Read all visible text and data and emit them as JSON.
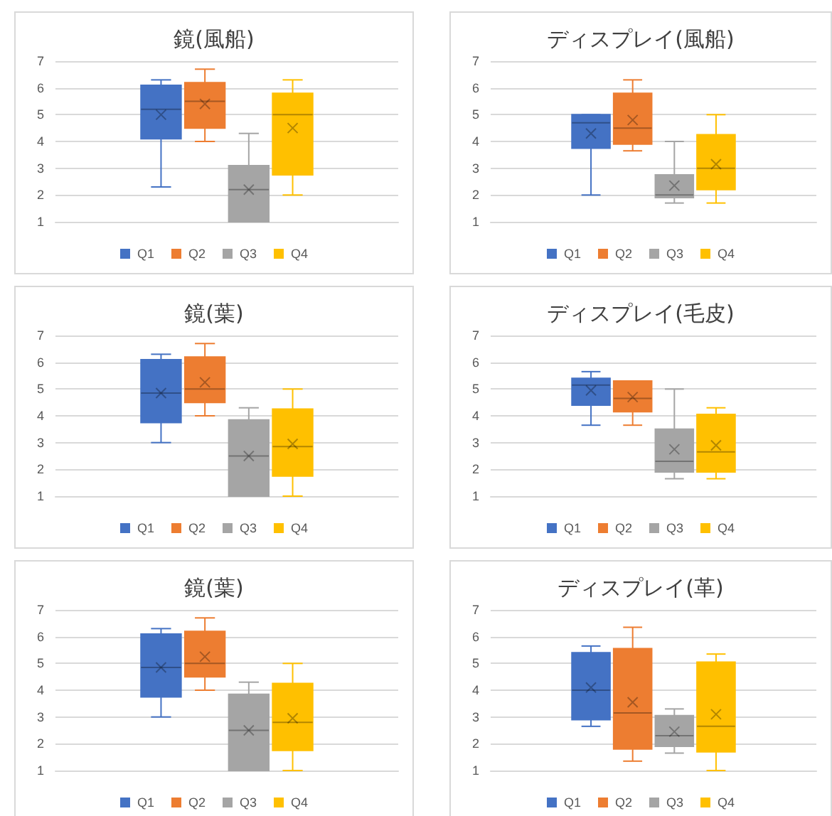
{
  "chart_data": [
    {
      "type": "box",
      "title": "鏡(風船)",
      "categories": [
        null
      ],
      "ylim": [
        1,
        7
      ],
      "yticks": [
        1,
        2,
        3,
        4,
        5,
        6,
        7
      ],
      "grid": "y",
      "legend": "bottom",
      "series": [
        {
          "name": "Q1",
          "color": "#4472c4",
          "boxes": [
            {
              "low": 2.3,
              "q1": 4.1,
              "median": 5.2,
              "q3": 6.1,
              "high": 6.3,
              "mean": 5.0
            }
          ]
        },
        {
          "name": "Q2",
          "color": "#ed7d31",
          "boxes": [
            {
              "low": 4.0,
              "q1": 4.5,
              "median": 5.5,
              "q3": 6.2,
              "high": 6.7,
              "mean": 5.4
            }
          ]
        },
        {
          "name": "Q3",
          "color": "#a5a5a5",
          "boxes": [
            {
              "low": 1.0,
              "q1": 1.0,
              "median": 2.2,
              "q3": 3.1,
              "high": 4.3,
              "mean": 2.2
            }
          ]
        },
        {
          "name": "Q4",
          "color": "#ffc000",
          "boxes": [
            {
              "low": 2.0,
              "q1": 2.75,
              "median": 5.0,
              "q3": 5.8,
              "high": 6.3,
              "mean": 4.5
            }
          ]
        }
      ]
    },
    {
      "type": "box",
      "title": "ディスプレイ(風船)",
      "categories": [
        null
      ],
      "ylim": [
        1,
        7
      ],
      "yticks": [
        1,
        2,
        3,
        4,
        5,
        6,
        7
      ],
      "grid": "y",
      "legend": "bottom",
      "series": [
        {
          "name": "Q1",
          "color": "#4472c4",
          "boxes": [
            {
              "low": 2.0,
              "q1": 3.75,
              "median": 4.7,
              "q3": 5.0,
              "high": 5.0,
              "mean": 4.3
            }
          ]
        },
        {
          "name": "Q2",
          "color": "#ed7d31",
          "boxes": [
            {
              "low": 3.65,
              "q1": 3.9,
              "median": 4.5,
              "q3": 5.8,
              "high": 6.3,
              "mean": 4.8
            }
          ]
        },
        {
          "name": "Q3",
          "color": "#a5a5a5",
          "boxes": [
            {
              "low": 1.7,
              "q1": 1.9,
              "median": 2.0,
              "q3": 2.75,
              "high": 4.0,
              "mean": 2.35
            }
          ]
        },
        {
          "name": "Q4",
          "color": "#ffc000",
          "boxes": [
            {
              "low": 1.7,
              "q1": 2.2,
              "median": 3.0,
              "q3": 4.25,
              "high": 5.0,
              "mean": 3.15
            }
          ]
        }
      ]
    },
    {
      "type": "box",
      "title": "鏡(葉)",
      "categories": [
        null
      ],
      "ylim": [
        1,
        7
      ],
      "yticks": [
        1,
        2,
        3,
        4,
        5,
        6,
        7
      ],
      "grid": "y",
      "legend": "bottom",
      "series": [
        {
          "name": "Q1",
          "color": "#4472c4",
          "boxes": [
            {
              "low": 3.0,
              "q1": 3.75,
              "median": 4.85,
              "q3": 6.1,
              "high": 6.3,
              "mean": 4.85
            }
          ]
        },
        {
          "name": "Q2",
          "color": "#ed7d31",
          "boxes": [
            {
              "low": 4.0,
              "q1": 4.5,
              "median": 5.0,
              "q3": 6.2,
              "high": 6.7,
              "mean": 5.25
            }
          ]
        },
        {
          "name": "Q3",
          "color": "#a5a5a5",
          "boxes": [
            {
              "low": 1.0,
              "q1": 1.0,
              "median": 2.5,
              "q3": 3.85,
              "high": 4.3,
              "mean": 2.5
            }
          ]
        },
        {
          "name": "Q4",
          "color": "#ffc000",
          "boxes": [
            {
              "low": 1.0,
              "q1": 1.75,
              "median": 2.85,
              "q3": 4.25,
              "high": 5.0,
              "mean": 2.95
            }
          ]
        }
      ]
    },
    {
      "type": "box",
      "title": "ディスプレイ(毛皮)",
      "categories": [
        null
      ],
      "ylim": [
        1,
        7
      ],
      "yticks": [
        1,
        2,
        3,
        4,
        5,
        6,
        7
      ],
      "grid": "y",
      "legend": "bottom",
      "series": [
        {
          "name": "Q1",
          "color": "#4472c4",
          "boxes": [
            {
              "low": 3.65,
              "q1": 4.4,
              "median": 5.15,
              "q3": 5.4,
              "high": 5.65,
              "mean": 4.95
            }
          ]
        },
        {
          "name": "Q2",
          "color": "#ed7d31",
          "boxes": [
            {
              "low": 3.65,
              "q1": 4.15,
              "median": 4.65,
              "q3": 5.3,
              "high": 5.3,
              "mean": 4.7
            }
          ]
        },
        {
          "name": "Q3",
          "color": "#a5a5a5",
          "boxes": [
            {
              "low": 1.65,
              "q1": 1.9,
              "median": 2.3,
              "q3": 3.5,
              "high": 5.0,
              "mean": 2.75
            }
          ]
        },
        {
          "name": "Q4",
          "color": "#ffc000",
          "boxes": [
            {
              "low": 1.65,
              "q1": 1.9,
              "median": 2.65,
              "q3": 4.05,
              "high": 4.3,
              "mean": 2.9
            }
          ]
        }
      ]
    },
    {
      "type": "box",
      "title": "鏡(葉)",
      "categories": [
        null
      ],
      "ylim": [
        1,
        7
      ],
      "yticks": [
        1,
        2,
        3,
        4,
        5,
        6,
        7
      ],
      "grid": "y",
      "legend": "bottom",
      "series": [
        {
          "name": "Q1",
          "color": "#4472c4",
          "boxes": [
            {
              "low": 3.0,
              "q1": 3.75,
              "median": 4.85,
              "q3": 6.1,
              "high": 6.3,
              "mean": 4.85
            }
          ]
        },
        {
          "name": "Q2",
          "color": "#ed7d31",
          "boxes": [
            {
              "low": 4.0,
              "q1": 4.5,
              "median": 5.0,
              "q3": 6.2,
              "high": 6.7,
              "mean": 5.25
            }
          ]
        },
        {
          "name": "Q3",
          "color": "#a5a5a5",
          "boxes": [
            {
              "low": 1.0,
              "q1": 1.0,
              "median": 2.5,
              "q3": 3.85,
              "high": 4.3,
              "mean": 2.5
            }
          ]
        },
        {
          "name": "Q4",
          "color": "#ffc000",
          "boxes": [
            {
              "low": 1.0,
              "q1": 1.75,
              "median": 2.8,
              "q3": 4.25,
              "high": 5.0,
              "mean": 2.95
            }
          ]
        }
      ]
    },
    {
      "type": "box",
      "title": "ディスプレイ(革)",
      "categories": [
        null
      ],
      "ylim": [
        1,
        7
      ],
      "yticks": [
        1,
        2,
        3,
        4,
        5,
        6,
        7
      ],
      "grid": "y",
      "legend": "bottom",
      "series": [
        {
          "name": "Q1",
          "color": "#4472c4",
          "boxes": [
            {
              "low": 2.65,
              "q1": 2.9,
              "median": 4.0,
              "q3": 5.4,
              "high": 5.65,
              "mean": 4.1
            }
          ]
        },
        {
          "name": "Q2",
          "color": "#ed7d31",
          "boxes": [
            {
              "low": 1.35,
              "q1": 1.8,
              "median": 3.15,
              "q3": 5.55,
              "high": 6.35,
              "mean": 3.55
            }
          ]
        },
        {
          "name": "Q3",
          "color": "#a5a5a5",
          "boxes": [
            {
              "low": 1.65,
              "q1": 1.9,
              "median": 2.3,
              "q3": 3.05,
              "high": 3.3,
              "mean": 2.45
            }
          ]
        },
        {
          "name": "Q4",
          "color": "#ffc000",
          "boxes": [
            {
              "low": 1.0,
              "q1": 1.7,
              "median": 2.65,
              "q3": 5.05,
              "high": 5.35,
              "mean": 3.1
            }
          ]
        }
      ]
    }
  ]
}
